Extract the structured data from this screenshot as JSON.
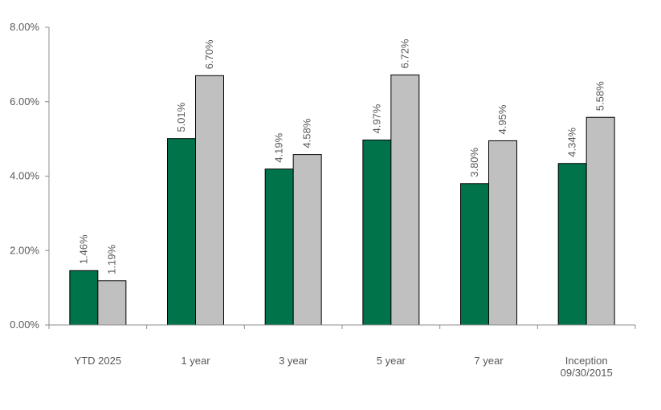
{
  "chart_data": {
    "type": "bar",
    "categories": [
      "YTD 2025",
      "1 year",
      "3 year",
      "5 year",
      "7 year",
      "Inception\n09/30/2015"
    ],
    "series": [
      {
        "values": [
          1.46,
          5.01,
          4.19,
          4.97,
          3.8,
          4.34
        ],
        "color": "#00734a"
      },
      {
        "values": [
          1.19,
          6.7,
          4.58,
          6.72,
          4.95,
          5.58
        ],
        "color": "#c0c0c0"
      }
    ],
    "data_labels": [
      [
        "1.46%",
        "5.01%",
        "4.19%",
        "4.97%",
        "3.80%",
        "4.34%"
      ],
      [
        "1.19%",
        "6.70%",
        "4.58%",
        "6.72%",
        "4.95%",
        "5.58%"
      ]
    ],
    "y_ticks": [
      0,
      2,
      4,
      6,
      8
    ],
    "y_tick_labels": [
      "0.00%",
      "2.00%",
      "4.00%",
      "6.00%",
      "8.00%"
    ],
    "ylim": [
      0,
      8
    ],
    "grid": false,
    "legend": "none",
    "label_color": "#595959",
    "axis_color": "#8c8c8c"
  }
}
